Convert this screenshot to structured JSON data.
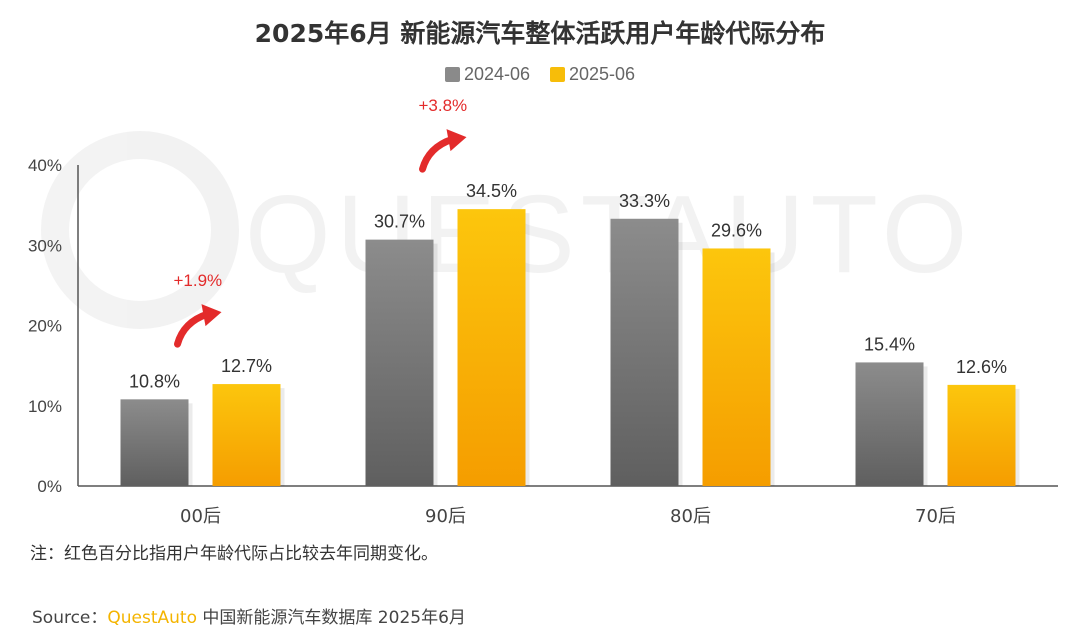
{
  "title": "2025年6月 新能源汽车整体活跃用户年龄代际分布",
  "note": "注：红色百分比指用户年龄代际占比较去年同期变化。",
  "source": {
    "prefix": "Source：",
    "brand": "QuestAuto",
    "suffix": " 中国新能源汽车数据库 2025年6月"
  },
  "watermark": "QUESTAUTO",
  "colors": {
    "series_2024": "#8a8a8a",
    "series_2025": "#f7bd09",
    "change": "#e32b2b",
    "axis": "#555555"
  },
  "chart_data": {
    "type": "bar",
    "categories": [
      "00后",
      "90后",
      "80后",
      "70后"
    ],
    "series": [
      {
        "name": "2024-06",
        "values": [
          10.8,
          30.7,
          33.3,
          15.4
        ]
      },
      {
        "name": "2025-06",
        "values": [
          12.7,
          34.5,
          29.6,
          12.6
        ]
      }
    ],
    "value_labels": [
      [
        "10.8%",
        "30.7%",
        "33.3%",
        "15.4%"
      ],
      [
        "12.7%",
        "34.5%",
        "29.6%",
        "12.6%"
      ]
    ],
    "y_ticks": [
      0,
      10,
      20,
      30,
      40
    ],
    "y_tick_labels": [
      "0%",
      "10%",
      "20%",
      "30%",
      "40%"
    ],
    "ylim": [
      0,
      40
    ],
    "legend_position": "top-center",
    "grid": false,
    "annotations": [
      {
        "category": "00后",
        "text": "+1.9%"
      },
      {
        "category": "90后",
        "text": "+3.8%"
      }
    ]
  }
}
